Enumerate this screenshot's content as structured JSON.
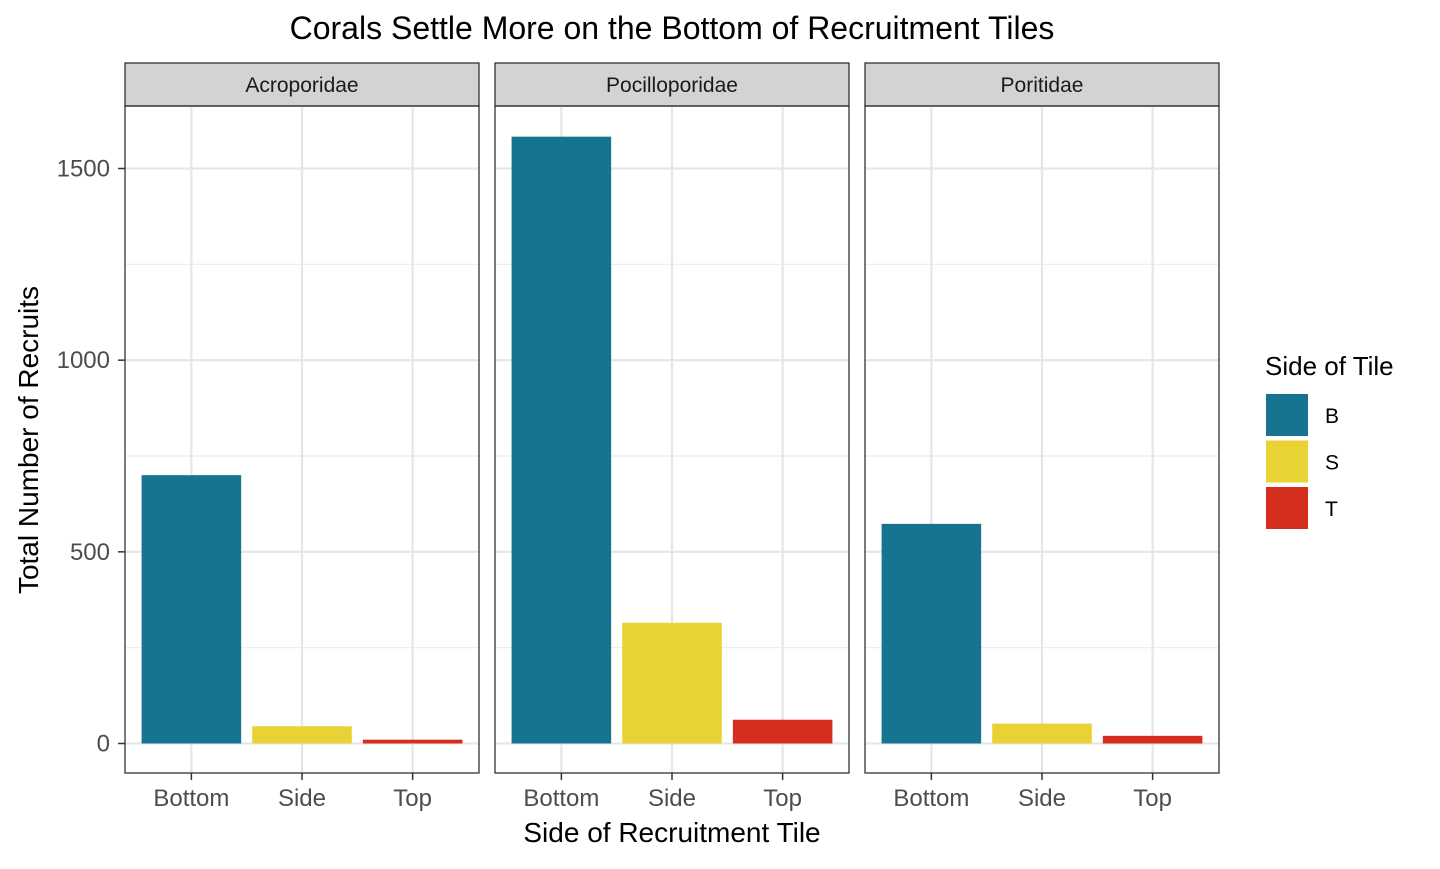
{
  "chart_data": {
    "type": "bar",
    "title": "Corals Settle More on the Bottom of Recruitment Tiles",
    "xlabel": "Side of Recruitment Tile",
    "ylabel": "Total Number of Recruits",
    "categories": [
      "Bottom",
      "Side",
      "Top"
    ],
    "ylim": [
      -75,
      1665
    ],
    "yticks": [
      0,
      500,
      1000,
      1500
    ],
    "grid": true,
    "facets": [
      {
        "name": "Acroporidae",
        "values": [
          700,
          45,
          10
        ]
      },
      {
        "name": "Pocilloporidae",
        "values": [
          1583,
          315,
          62
        ]
      },
      {
        "name": "Poritidae",
        "values": [
          573,
          52,
          20
        ]
      }
    ],
    "legend": {
      "title": "Side of Tile",
      "position": "right",
      "items": [
        {
          "label": "B",
          "color": "#167490"
        },
        {
          "label": "S",
          "color": "#E8D234"
        },
        {
          "label": "T",
          "color": "#D42F1E"
        }
      ]
    }
  }
}
